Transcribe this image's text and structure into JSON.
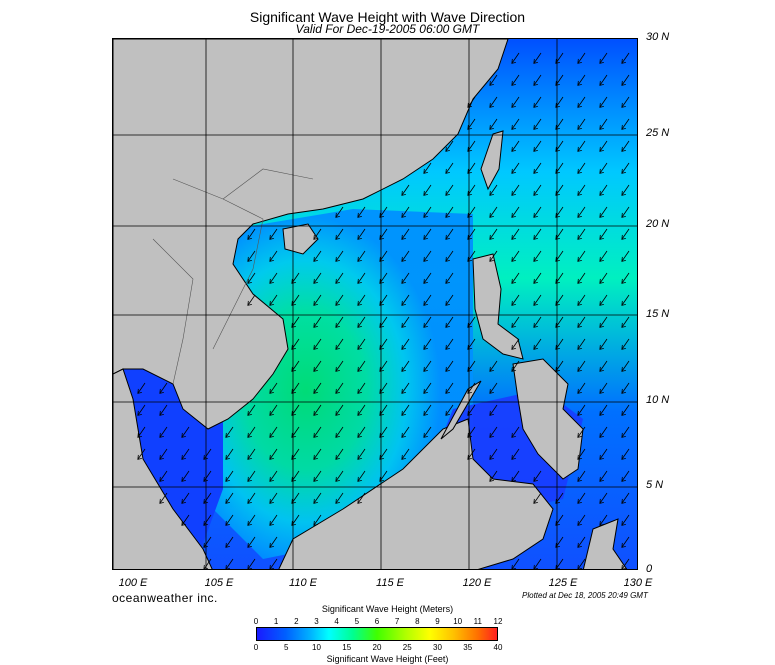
{
  "title": "Significant Wave Height with Wave Direction",
  "subtitle": "Valid For Dec-19-2005 06:00 GMT",
  "lat_labels": [
    "30 N",
    "25 N",
    "20 N",
    "15 N",
    "10 N",
    "5 N",
    "0"
  ],
  "lon_labels": [
    "100 E",
    "105 E",
    "110 E",
    "115 E",
    "120 E",
    "125 E",
    "130 E"
  ],
  "brand": "oceanweather inc.",
  "plotted": "Plotted at Dec 18, 2005 20:49 GMT",
  "legend": {
    "meters_title": "Significant Wave Height (Meters)",
    "feet_title": "Significant Wave Height (Feet)",
    "meters_ticks": [
      "0",
      "1",
      "2",
      "3",
      "4",
      "5",
      "6",
      "7",
      "8",
      "9",
      "10",
      "11",
      "12"
    ],
    "feet_ticks": [
      "0",
      "5",
      "10",
      "15",
      "20",
      "25",
      "30",
      "35",
      "40"
    ]
  },
  "colors": {
    "land": "#c0c0c0",
    "low": "#1a1aff",
    "mid": "#00ffff",
    "high": "#40ff40"
  }
}
